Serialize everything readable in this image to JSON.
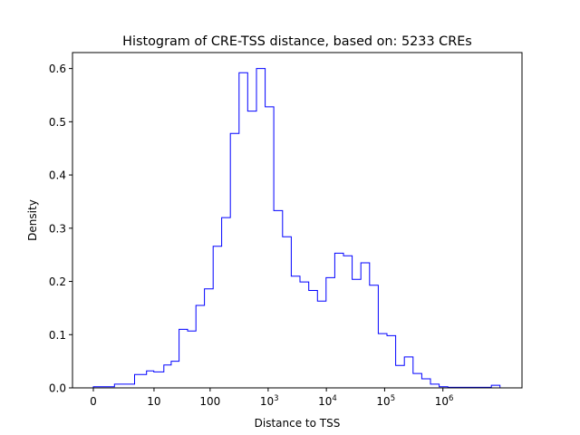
{
  "chart_data": {
    "type": "histogram",
    "title": "Histogram of CRE-TSS distance, based on: 5233 CREs",
    "xlabel": "Distance to TSS",
    "ylabel": "Density",
    "x_scale": "log1p",
    "x_range": [
      0,
      10000000
    ],
    "ylim": [
      0,
      0.63
    ],
    "line_color": "#0000ff",
    "grid": false,
    "x_ticks": [
      {
        "value": 0,
        "base": "0",
        "exp": ""
      },
      {
        "value": 10,
        "base": "10",
        "exp": ""
      },
      {
        "value": 100,
        "base": "100",
        "exp": ""
      },
      {
        "value": 1000,
        "base": "10",
        "exp": "3"
      },
      {
        "value": 10000,
        "base": "10",
        "exp": "4"
      },
      {
        "value": 100000,
        "base": "10",
        "exp": "5"
      },
      {
        "value": 1000000,
        "base": "10",
        "exp": "6"
      }
    ],
    "y_ticks": [
      "0.0",
      "0.1",
      "0.2",
      "0.3",
      "0.4",
      "0.5",
      "0.6"
    ],
    "bin_edges": [
      0,
      1.3,
      4.1,
      7.2,
      9.9,
      15.2,
      20.7,
      28.6,
      40.5,
      56.6,
      79.8,
      112.8,
      158.7,
      224.1,
      316.2,
      445.2,
      628.9,
      889.1,
      1251,
      1768,
      2496,
      3525,
      4975,
      7017,
      9891,
      13955,
      19680,
      27747,
      39131,
      55178,
      77807,
      109686,
      154665,
      218099,
      307514,
      433633,
      611493,
      862332,
      1215999,
      1714742,
      2418109,
      3409799,
      4808351,
      6780543,
      9561586
    ],
    "values": [
      0.002,
      0.007,
      0.025,
      0.032,
      0.03,
      0.043,
      0.05,
      0.11,
      0.107,
      0.155,
      0.186,
      0.266,
      0.32,
      0.478,
      0.592,
      0.52,
      0.6,
      0.528,
      0.333,
      0.284,
      0.21,
      0.199,
      0.183,
      0.163,
      0.207,
      0.253,
      0.248,
      0.204,
      0.235,
      0.193,
      0.102,
      0.098,
      0.042,
      0.058,
      0.027,
      0.017,
      0.007,
      0.002,
      0.001,
      0.001,
      0.001,
      0.001,
      0.001,
      0.005
    ]
  }
}
